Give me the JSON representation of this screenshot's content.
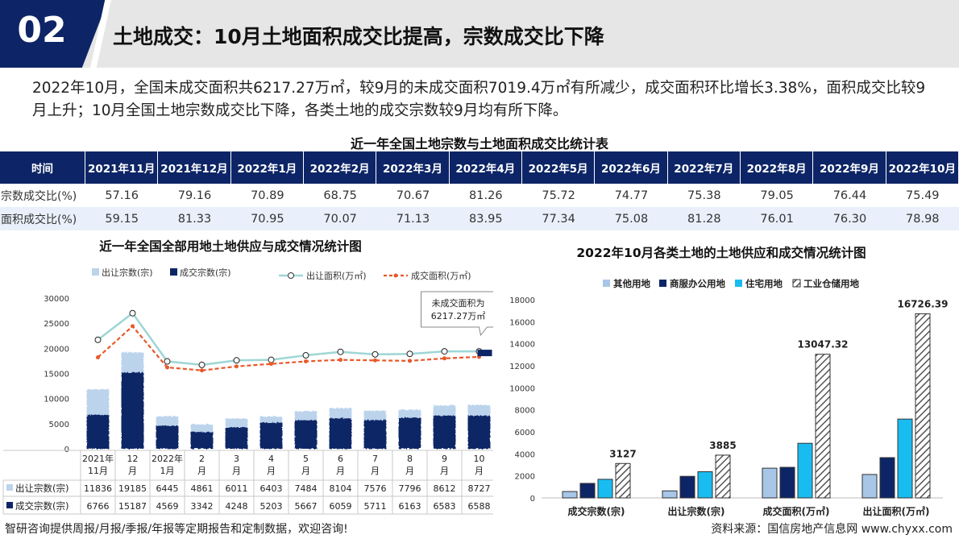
{
  "header": {
    "number": "02",
    "title": "土地成交：10月土地面积成交比提高，宗数成交比下降"
  },
  "intro": "2022年10月，全国未成交面积共6217.27万㎡，较9月的未成交面积7019.4万㎡有所减少，成交面积环比增长3.38%，面积成交比较9月上升；10月全国土地宗数成交比下降，各类土地的成交宗数较9月均有所下降。",
  "table": {
    "title": "近一年全国土地宗数与土地面积成交比统计表",
    "corner": "时间",
    "columns": [
      "2021年11月",
      "2021年12月",
      "2022年1月",
      "2022年2月",
      "2022年3月",
      "2022年4月",
      "2022年5月",
      "2022年6月",
      "2022年7月",
      "2022年8月",
      "2022年9月",
      "2022年10月"
    ],
    "rows": [
      {
        "label": "宗数成交比(%)",
        "values": [
          "57.16",
          "79.16",
          "70.89",
          "68.75",
          "70.67",
          "81.26",
          "75.72",
          "74.77",
          "75.38",
          "79.05",
          "76.44",
          "75.49"
        ]
      },
      {
        "label": "面积成交比(%)",
        "values": [
          "59.15",
          "81.33",
          "70.95",
          "70.07",
          "71.13",
          "83.95",
          "77.34",
          "75.08",
          "81.28",
          "76.01",
          "76.30",
          "78.98"
        ]
      }
    ]
  },
  "chart_data": [
    {
      "type": "bar",
      "title": "近一年全国全部用地土地供应与成交情况统计图",
      "categories": [
        [
          "2021年",
          "11月"
        ],
        [
          "12",
          "月"
        ],
        [
          "2022年",
          "1月"
        ],
        [
          "2",
          "月"
        ],
        [
          "3",
          "月"
        ],
        [
          "4",
          "月"
        ],
        [
          "5",
          "月"
        ],
        [
          "6",
          "月"
        ],
        [
          "7",
          "月"
        ],
        [
          "8",
          "月"
        ],
        [
          "9",
          "月"
        ],
        [
          "10",
          "月"
        ]
      ],
      "ylim": [
        0,
        30000
      ],
      "yticks": [
        0,
        5000,
        10000,
        15000,
        20000,
        25000,
        30000
      ],
      "legend": [
        "出让宗数(宗)",
        "成交宗数(宗)",
        "出让面积(万㎡)",
        "成交面积(万㎡)"
      ],
      "series": [
        {
          "name": "出让宗数(宗)",
          "type": "bar",
          "color": "#bcd3ec",
          "values": [
            11836,
            19185,
            6445,
            4861,
            6011,
            6403,
            7484,
            8104,
            7576,
            7796,
            8612,
            8727
          ]
        },
        {
          "name": "成交宗数(宗)",
          "type": "bar",
          "color": "#0d2566",
          "values": [
            6766,
            15187,
            4569,
            3342,
            4248,
            5203,
            5667,
            6059,
            5711,
            6163,
            6583,
            6588
          ]
        },
        {
          "name": "出让面积(万㎡)",
          "type": "line",
          "color": "#9fd6d6",
          "values": [
            21700,
            27000,
            17400,
            16700,
            17600,
            17700,
            18600,
            19300,
            18800,
            18900,
            19400,
            19400
          ]
        },
        {
          "name": "成交面积(万㎡)",
          "type": "line",
          "color": "#e8582a",
          "values": [
            18200,
            24400,
            16200,
            15600,
            16400,
            16900,
            17400,
            17700,
            17600,
            17500,
            18000,
            18300
          ]
        }
      ],
      "annotation": {
        "lines": [
          "未成交面积为",
          "6217.27万㎡"
        ],
        "category_index": 11
      },
      "table_rows": [
        {
          "label": "出让宗数(宗)",
          "values": [
            "11836",
            "19185",
            "6445",
            "4861",
            "6011",
            "6403",
            "7484",
            "8104",
            "7576",
            "7796",
            "8612",
            "8727"
          ]
        },
        {
          "label": "成交宗数(宗)",
          "values": [
            "6766",
            "15187",
            "4569",
            "3342",
            "4248",
            "5203",
            "5667",
            "6059",
            "5711",
            "6163",
            "6583",
            "6588"
          ]
        }
      ]
    },
    {
      "type": "bar",
      "title": "2022年10月各类土地的土地供应和成交情况统计图",
      "categories": [
        "成交宗数(宗)",
        "出让宗数(宗)",
        "成交面积(万㎡)",
        "出让面积(万㎡)"
      ],
      "ylim": [
        0,
        18000
      ],
      "yticks": [
        0,
        2000,
        4000,
        6000,
        8000,
        10000,
        12000,
        14000,
        16000,
        18000
      ],
      "legend": [
        "其他用地",
        "商服办公用地",
        "住宅用地",
        "工业仓储用地"
      ],
      "series": [
        {
          "name": "其他用地",
          "color": "#a7c6e8",
          "values": [
            580,
            640,
            2700,
            2130
          ]
        },
        {
          "name": "商服办公用地",
          "color": "#0d2566",
          "values": [
            1320,
            1960,
            2780,
            3660
          ]
        },
        {
          "name": "住宅用地",
          "color": "#19bcf0",
          "values": [
            1690,
            2380,
            4960,
            7160
          ]
        },
        {
          "name": "工业仓储用地",
          "color": "#ffffff",
          "values": [
            3127,
            3885,
            13047.32,
            16726.39
          ]
        }
      ],
      "value_labels": [
        "3127",
        "3885",
        "13047.32",
        "16726.39"
      ]
    }
  ],
  "footer": {
    "left": "智研咨询提供周报/月报/季报/年报等定期报告和定制数据，欢迎咨询!",
    "right": "资料来源：国信房地产信息网    www.chyxx.com"
  }
}
